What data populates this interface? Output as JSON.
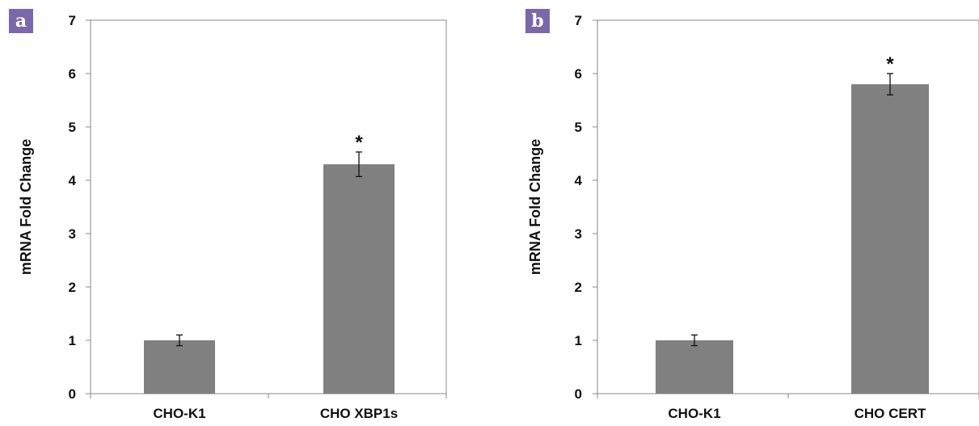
{
  "chart_data": [
    {
      "panel_label": "a",
      "type": "bar",
      "categories": [
        "CHO-K1",
        "CHO XBP1s"
      ],
      "values": [
        1.0,
        4.3
      ],
      "error": [
        0.1,
        0.23
      ],
      "annotations": [
        "",
        "*"
      ],
      "ylabel": "mRNA Fold Change",
      "ylim": [
        0,
        7
      ],
      "yticks": [
        "0",
        "1",
        "2",
        "3",
        "4",
        "5",
        "6",
        "7"
      ],
      "bar_color": "#808080"
    },
    {
      "panel_label": "b",
      "type": "bar",
      "categories": [
        "CHO-K1",
        "CHO CERT"
      ],
      "values": [
        1.0,
        5.8
      ],
      "error": [
        0.1,
        0.2
      ],
      "annotations": [
        "",
        "*"
      ],
      "ylabel": "mRNA Fold Change",
      "ylim": [
        0,
        7
      ],
      "yticks": [
        "0",
        "1",
        "2",
        "3",
        "4",
        "5",
        "6",
        "7"
      ],
      "bar_color": "#808080"
    }
  ],
  "colors": {
    "panel_label_bg": "#7b68a8",
    "bar": "#808080",
    "axis": "#888888"
  }
}
